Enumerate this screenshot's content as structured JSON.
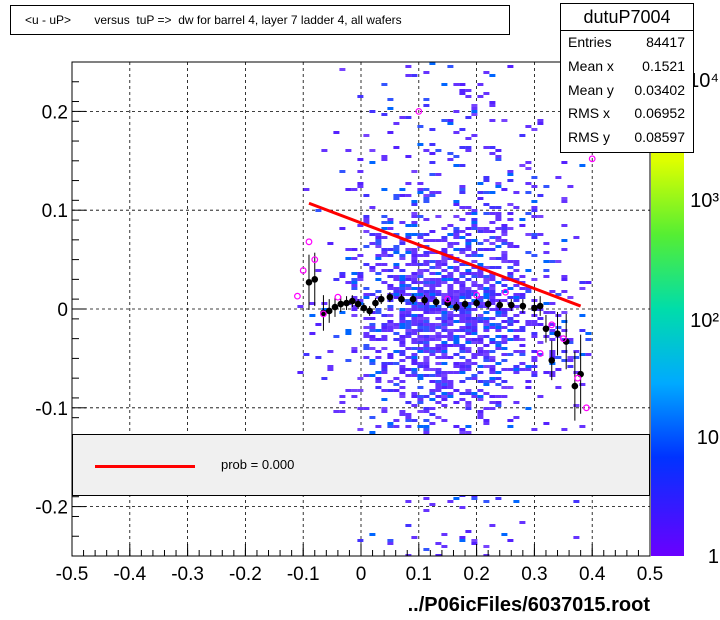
{
  "title": "<u - uP>       versus  tuP =>  dw for barrel 4, layer 7 ladder 4, all wafers",
  "stats": {
    "name": "dutuP7004",
    "rows": [
      {
        "label": "Entries",
        "value": "84417"
      },
      {
        "label": "Mean x",
        "value": "0.1521"
      },
      {
        "label": "Mean y",
        "value": "0.03402"
      },
      {
        "label": "RMS x",
        "value": "0.06952"
      },
      {
        "label": "RMS y",
        "value": "0.08597"
      }
    ]
  },
  "legend": {
    "label": "prob = 0.000"
  },
  "footer": "../P06icFiles/6037015.root",
  "colors": {
    "fit_line": "#ff0000",
    "profile_points": "#000000",
    "open_markers": "#ff00ff",
    "dominant_cell": "#6633ff"
  },
  "chart_data": {
    "type": "heatmap",
    "xlim": [
      -0.5,
      0.5
    ],
    "ylim": [
      -0.25,
      0.25
    ],
    "x_ticks": [
      "-0.5",
      "-0.4",
      "-0.3",
      "-0.2",
      "-0.1",
      "0",
      "0.1",
      "0.2",
      "0.3",
      "0.4",
      "0.5"
    ],
    "y_ticks": [
      "-0.2",
      "-0.1",
      "0",
      "0.1",
      "0.2"
    ],
    "grid": true,
    "colorbar": {
      "scale": "log",
      "labels": [
        "1",
        "10",
        "10²",
        "10³",
        "10⁴"
      ]
    },
    "fit_line": {
      "x": [
        -0.09,
        0.38
      ],
      "y": [
        0.107,
        0.003
      ]
    },
    "profile": {
      "x": [
        -0.09,
        -0.08,
        -0.065,
        -0.055,
        -0.045,
        -0.035,
        -0.025,
        -0.015,
        -0.005,
        0.005,
        0.015,
        0.025,
        0.035,
        0.05,
        0.07,
        0.09,
        0.11,
        0.13,
        0.15,
        0.165,
        0.18,
        0.2,
        0.22,
        0.24,
        0.26,
        0.28,
        0.3,
        0.31,
        0.32,
        0.33,
        0.34,
        0.355,
        0.37,
        0.38
      ],
      "y": [
        0.027,
        0.03,
        -0.004,
        -0.002,
        0.002,
        0.005,
        0.006,
        0.008,
        0.005,
        0.001,
        -0.002,
        0.006,
        0.01,
        0.012,
        0.01,
        0.01,
        0.009,
        0.007,
        0.006,
        0.002,
        0.005,
        0.006,
        0.005,
        0.004,
        0.004,
        0.003,
        0.001,
        0.003,
        -0.02,
        -0.052,
        -0.025,
        -0.033,
        -0.078,
        -0.066
      ],
      "err": [
        0.028,
        0.027,
        0.018,
        0.012,
        0.01,
        0.008,
        0.007,
        0.006,
        0.005,
        0.005,
        0.005,
        0.005,
        0.005,
        0.005,
        0.005,
        0.005,
        0.005,
        0.005,
        0.005,
        0.005,
        0.005,
        0.005,
        0.005,
        0.005,
        0.006,
        0.007,
        0.009,
        0.01,
        0.014,
        0.02,
        0.022,
        0.028,
        0.035,
        0.04
      ]
    },
    "open_markers": {
      "x": [
        -0.11,
        -0.1,
        -0.09,
        -0.08,
        -0.065,
        -0.04,
        0.1,
        0.15,
        0.2,
        0.25,
        0.31,
        0.33,
        0.35,
        0.375,
        0.39,
        0.4
      ],
      "y": [
        0.013,
        0.039,
        0.068,
        0.05,
        -0.005,
        0.012,
        0.2,
        0.01,
        0.014,
        0.017,
        -0.045,
        -0.016,
        -0.03,
        -0.07,
        -0.1,
        0.152
      ]
    }
  }
}
